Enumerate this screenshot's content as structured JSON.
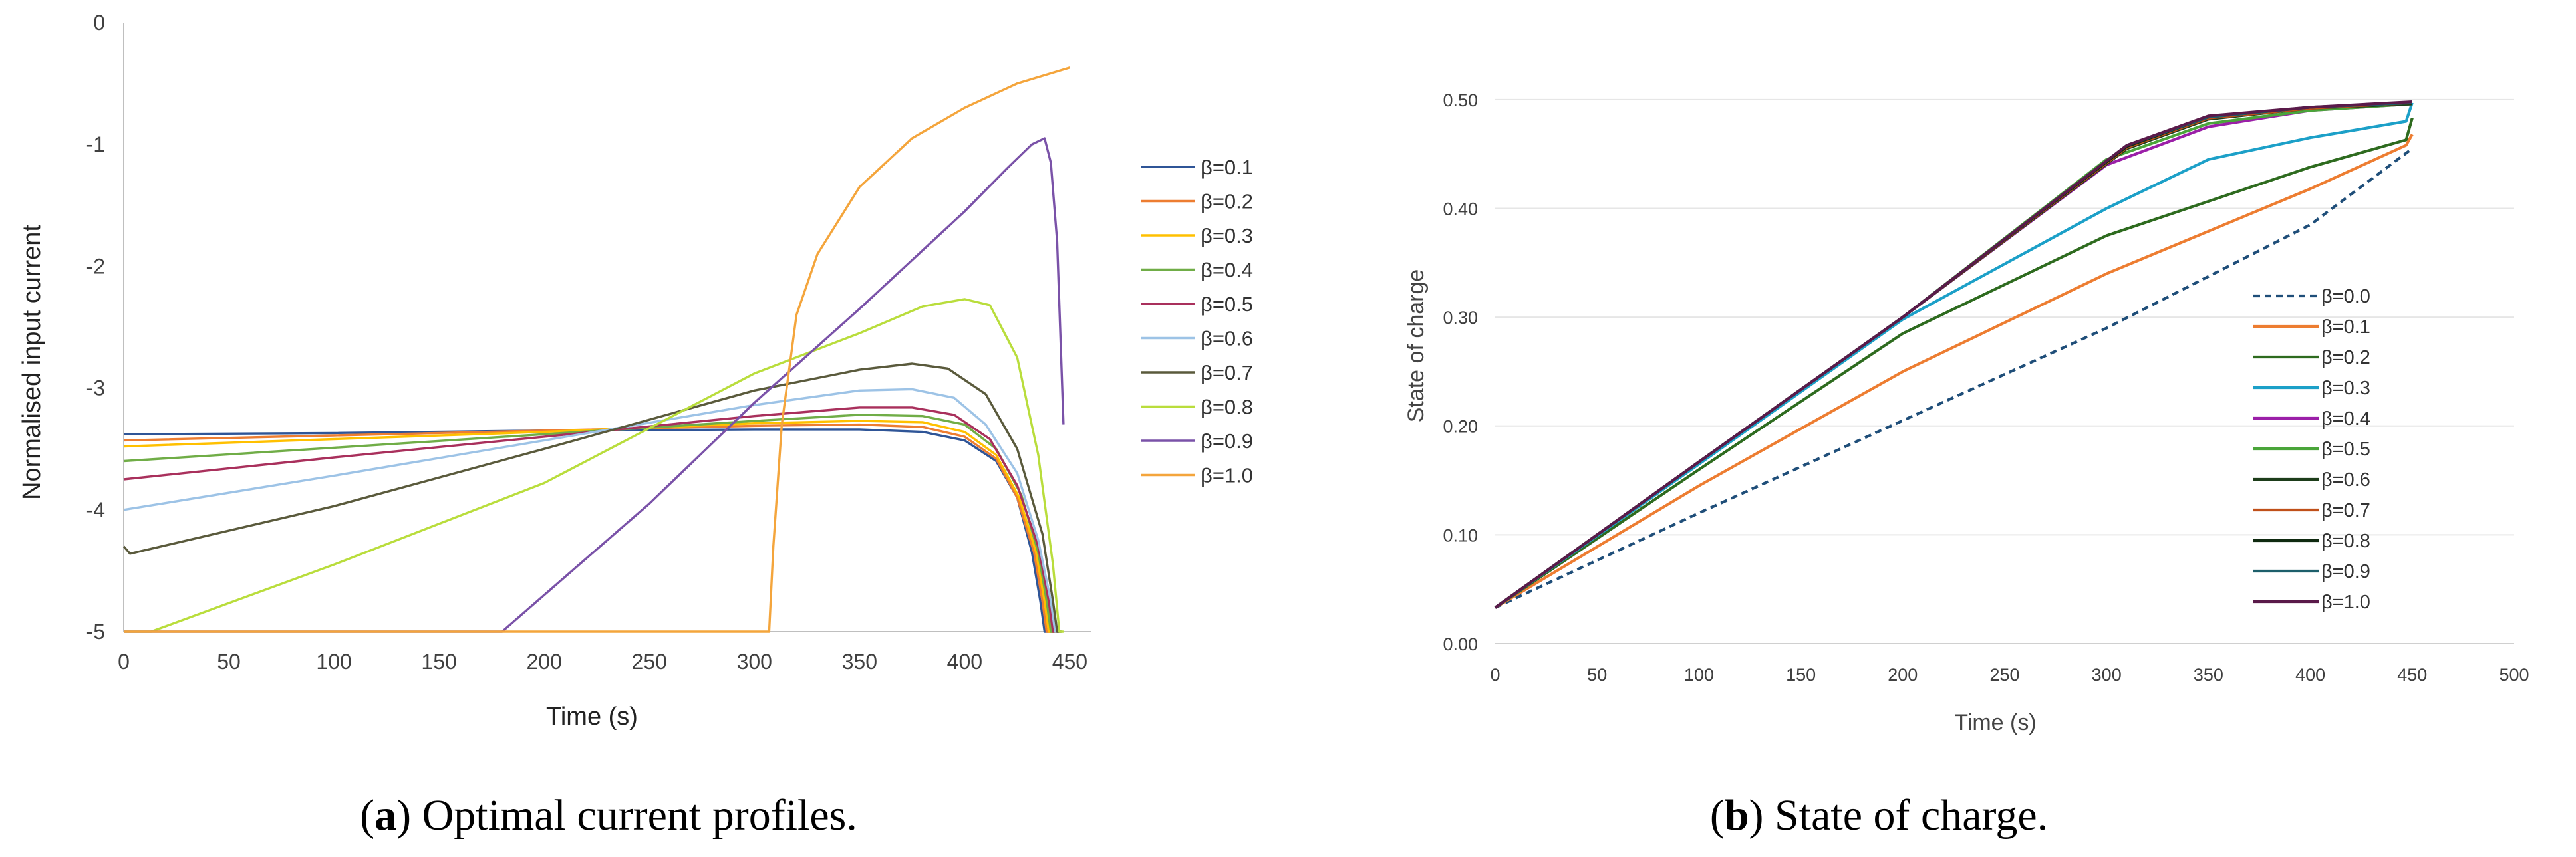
{
  "figure_a": {
    "caption": {
      "label": "a",
      "text": ") Optimal current profiles."
    },
    "chart_data": {
      "type": "line",
      "title": "",
      "xlabel": "Time (s)",
      "ylabel": "Normalised input current",
      "xlim": [
        0,
        460
      ],
      "ylim": [
        -5,
        0
      ],
      "xticks": [
        0,
        50,
        100,
        150,
        200,
        250,
        300,
        350,
        400,
        450
      ],
      "yticks": [
        0,
        -1,
        -2,
        -3,
        -4,
        -5
      ],
      "legend_position": "right",
      "series": [
        {
          "name": "β=0.1",
          "color": "#2f5597",
          "points": [
            [
              0,
              -3.38
            ],
            [
              100,
              -3.37
            ],
            [
              200,
              -3.35
            ],
            [
              300,
              -3.34
            ],
            [
              350,
              -3.34
            ],
            [
              380,
              -3.36
            ],
            [
              400,
              -3.43
            ],
            [
              415,
              -3.6
            ],
            [
              425,
              -3.9
            ],
            [
              432,
              -4.35
            ],
            [
              436,
              -4.75
            ],
            [
              438,
              -5
            ],
            [
              445,
              -5
            ]
          ]
        },
        {
          "name": "β=0.2",
          "color": "#ed7d31",
          "points": [
            [
              0,
              -3.43
            ],
            [
              100,
              -3.39
            ],
            [
              200,
              -3.35
            ],
            [
              300,
              -3.31
            ],
            [
              350,
              -3.3
            ],
            [
              380,
              -3.32
            ],
            [
              400,
              -3.4
            ],
            [
              415,
              -3.58
            ],
            [
              425,
              -3.9
            ],
            [
              433,
              -4.35
            ],
            [
              437,
              -4.75
            ],
            [
              439,
              -5
            ],
            [
              445,
              -5
            ]
          ]
        },
        {
          "name": "β=0.3",
          "color": "#ffc000",
          "points": [
            [
              0,
              -3.48
            ],
            [
              100,
              -3.42
            ],
            [
              200,
              -3.36
            ],
            [
              300,
              -3.29
            ],
            [
              350,
              -3.27
            ],
            [
              380,
              -3.28
            ],
            [
              400,
              -3.36
            ],
            [
              415,
              -3.55
            ],
            [
              426,
              -3.9
            ],
            [
              434,
              -4.35
            ],
            [
              438,
              -4.75
            ],
            [
              440,
              -5
            ],
            [
              445,
              -5
            ]
          ]
        },
        {
          "name": "β=0.4",
          "color": "#70ad47",
          "points": [
            [
              0,
              -3.6
            ],
            [
              100,
              -3.49
            ],
            [
              200,
              -3.38
            ],
            [
              300,
              -3.27
            ],
            [
              350,
              -3.22
            ],
            [
              380,
              -3.23
            ],
            [
              400,
              -3.3
            ],
            [
              415,
              -3.5
            ],
            [
              427,
              -3.88
            ],
            [
              435,
              -4.35
            ],
            [
              439,
              -4.75
            ],
            [
              441,
              -5
            ],
            [
              445,
              -5
            ]
          ]
        },
        {
          "name": "β=0.5",
          "color": "#a9305c",
          "points": [
            [
              0,
              -3.75
            ],
            [
              100,
              -3.57
            ],
            [
              200,
              -3.4
            ],
            [
              300,
              -3.23
            ],
            [
              350,
              -3.16
            ],
            [
              375,
              -3.16
            ],
            [
              395,
              -3.22
            ],
            [
              412,
              -3.42
            ],
            [
              425,
              -3.8
            ],
            [
              435,
              -4.3
            ],
            [
              440,
              -4.75
            ],
            [
              442,
              -5
            ],
            [
              446,
              -5
            ]
          ]
        },
        {
          "name": "β=0.6",
          "color": "#9dc3e6",
          "points": [
            [
              0,
              -4.0
            ],
            [
              100,
              -3.72
            ],
            [
              200,
              -3.43
            ],
            [
              300,
              -3.14
            ],
            [
              350,
              -3.02
            ],
            [
              375,
              -3.01
            ],
            [
              395,
              -3.08
            ],
            [
              410,
              -3.3
            ],
            [
              425,
              -3.7
            ],
            [
              435,
              -4.25
            ],
            [
              441,
              -4.75
            ],
            [
              443,
              -5
            ],
            [
              446,
              -5
            ]
          ]
        },
        {
          "name": "β=0.7",
          "color": "#5a5a3c",
          "points": [
            [
              0,
              -4.3
            ],
            [
              3,
              -4.36
            ],
            [
              100,
              -3.97
            ],
            [
              200,
              -3.5
            ],
            [
              300,
              -3.02
            ],
            [
              350,
              -2.85
            ],
            [
              375,
              -2.8
            ],
            [
              392,
              -2.84
            ],
            [
              410,
              -3.05
            ],
            [
              425,
              -3.5
            ],
            [
              437,
              -4.2
            ],
            [
              442,
              -4.75
            ],
            [
              444,
              -5
            ],
            [
              446,
              -5
            ]
          ]
        },
        {
          "name": "β=0.8",
          "color": "#b9dd3c",
          "points": [
            [
              0,
              -5
            ],
            [
              13,
              -5
            ],
            [
              100,
              -4.45
            ],
            [
              200,
              -3.78
            ],
            [
              300,
              -2.88
            ],
            [
              350,
              -2.55
            ],
            [
              380,
              -2.33
            ],
            [
              400,
              -2.27
            ],
            [
              412,
              -2.32
            ],
            [
              425,
              -2.75
            ],
            [
              435,
              -3.55
            ],
            [
              442,
              -4.45
            ],
            [
              445,
              -5
            ],
            [
              447,
              -5
            ]
          ]
        },
        {
          "name": "β=0.9",
          "color": "#7a52a8",
          "points": [
            [
              0,
              -5
            ],
            [
              180,
              -5
            ],
            [
              188,
              -4.88
            ],
            [
              250,
              -3.95
            ],
            [
              300,
              -3.12
            ],
            [
              350,
              -2.35
            ],
            [
              400,
              -1.55
            ],
            [
              420,
              -1.2
            ],
            [
              432,
              -1.0
            ],
            [
              438,
              -0.95
            ],
            [
              441,
              -1.15
            ],
            [
              444,
              -1.8
            ],
            [
              447,
              -3.3
            ]
          ]
        },
        {
          "name": "β=1.0",
          "color": "#f4a53c",
          "points": [
            [
              0,
              -5
            ],
            [
              307,
              -5
            ],
            [
              309,
              -4.3
            ],
            [
              313,
              -3.3
            ],
            [
              320,
              -2.4
            ],
            [
              330,
              -1.9
            ],
            [
              350,
              -1.35
            ],
            [
              375,
              -0.95
            ],
            [
              400,
              -0.7
            ],
            [
              425,
              -0.5
            ],
            [
              450,
              -0.37
            ]
          ]
        }
      ]
    }
  },
  "figure_b": {
    "caption": {
      "label": "b",
      "text": ") State of charge."
    },
    "chart_data": {
      "type": "line",
      "title": "",
      "xlabel": "Time (s)",
      "ylabel": "State of charge",
      "xlim": [
        0,
        500
      ],
      "ylim": [
        0,
        0.55
      ],
      "xticks": [
        0,
        50,
        100,
        150,
        200,
        250,
        300,
        350,
        400,
        450,
        500
      ],
      "yticks": [
        0.0,
        0.1,
        0.2,
        0.3,
        0.4,
        0.5
      ],
      "ytick_labels": [
        "0.00",
        "0.10",
        "0.20",
        "0.30",
        "0.40",
        "0.50"
      ],
      "legend_position": "right",
      "series": [
        {
          "name": "β=0.0",
          "color": "#1f4e79",
          "dashed": true,
          "points": [
            [
              0,
              0.033
            ],
            [
              100,
              0.12
            ],
            [
              200,
              0.205
            ],
            [
              300,
              0.29
            ],
            [
              400,
              0.385
            ],
            [
              450,
              0.455
            ]
          ]
        },
        {
          "name": "β=0.1",
          "color": "#ed7d31",
          "points": [
            [
              0,
              0.033
            ],
            [
              100,
              0.145
            ],
            [
              200,
              0.25
            ],
            [
              300,
              0.34
            ],
            [
              400,
              0.418
            ],
            [
              447,
              0.458
            ],
            [
              450,
              0.468
            ]
          ]
        },
        {
          "name": "β=0.2",
          "color": "#2e6b1f",
          "points": [
            [
              0,
              0.033
            ],
            [
              100,
              0.16
            ],
            [
              200,
              0.285
            ],
            [
              300,
              0.375
            ],
            [
              400,
              0.438
            ],
            [
              447,
              0.463
            ],
            [
              450,
              0.483
            ]
          ]
        },
        {
          "name": "β=0.3",
          "color": "#1ca0c8",
          "points": [
            [
              0,
              0.033
            ],
            [
              100,
              0.165
            ],
            [
              200,
              0.298
            ],
            [
              300,
              0.4
            ],
            [
              350,
              0.445
            ],
            [
              400,
              0.465
            ],
            [
              447,
              0.48
            ],
            [
              450,
              0.497
            ]
          ]
        },
        {
          "name": "β=0.4",
          "color": "#9b1fa8",
          "points": [
            [
              0,
              0.033
            ],
            [
              100,
              0.167
            ],
            [
              200,
              0.3
            ],
            [
              300,
              0.44
            ],
            [
              350,
              0.475
            ],
            [
              400,
              0.49
            ],
            [
              450,
              0.496
            ]
          ]
        },
        {
          "name": "β=0.5",
          "color": "#4aa53a",
          "points": [
            [
              0,
              0.033
            ],
            [
              100,
              0.167
            ],
            [
              200,
              0.3
            ],
            [
              300,
              0.445
            ],
            [
              350,
              0.478
            ],
            [
              400,
              0.49
            ],
            [
              450,
              0.496
            ]
          ]
        },
        {
          "name": "β=0.6",
          "color": "#1d3d1a",
          "points": [
            [
              0,
              0.033
            ],
            [
              100,
              0.167
            ],
            [
              200,
              0.3
            ],
            [
              310,
              0.455
            ],
            [
              350,
              0.482
            ],
            [
              400,
              0.492
            ],
            [
              450,
              0.496
            ]
          ]
        },
        {
          "name": "β=0.7",
          "color": "#c0501a",
          "points": [
            [
              0,
              0.033
            ],
            [
              100,
              0.167
            ],
            [
              200,
              0.3
            ],
            [
              310,
              0.456
            ],
            [
              350,
              0.483
            ],
            [
              400,
              0.492
            ],
            [
              450,
              0.497
            ]
          ]
        },
        {
          "name": "β=0.8",
          "color": "#0f2a10",
          "points": [
            [
              0,
              0.033
            ],
            [
              100,
              0.167
            ],
            [
              200,
              0.3
            ],
            [
              310,
              0.457
            ],
            [
              350,
              0.484
            ],
            [
              400,
              0.493
            ],
            [
              450,
              0.497
            ]
          ]
        },
        {
          "name": "β=0.9",
          "color": "#1d5f6b",
          "points": [
            [
              0,
              0.033
            ],
            [
              100,
              0.167
            ],
            [
              200,
              0.3
            ],
            [
              310,
              0.458
            ],
            [
              350,
              0.484
            ],
            [
              400,
              0.493
            ],
            [
              450,
              0.497
            ]
          ]
        },
        {
          "name": "β=1.0",
          "color": "#5a1a4a",
          "points": [
            [
              0,
              0.033
            ],
            [
              100,
              0.167
            ],
            [
              200,
              0.3
            ],
            [
              310,
              0.458
            ],
            [
              350,
              0.485
            ],
            [
              400,
              0.493
            ],
            [
              450,
              0.498
            ]
          ]
        }
      ]
    }
  }
}
